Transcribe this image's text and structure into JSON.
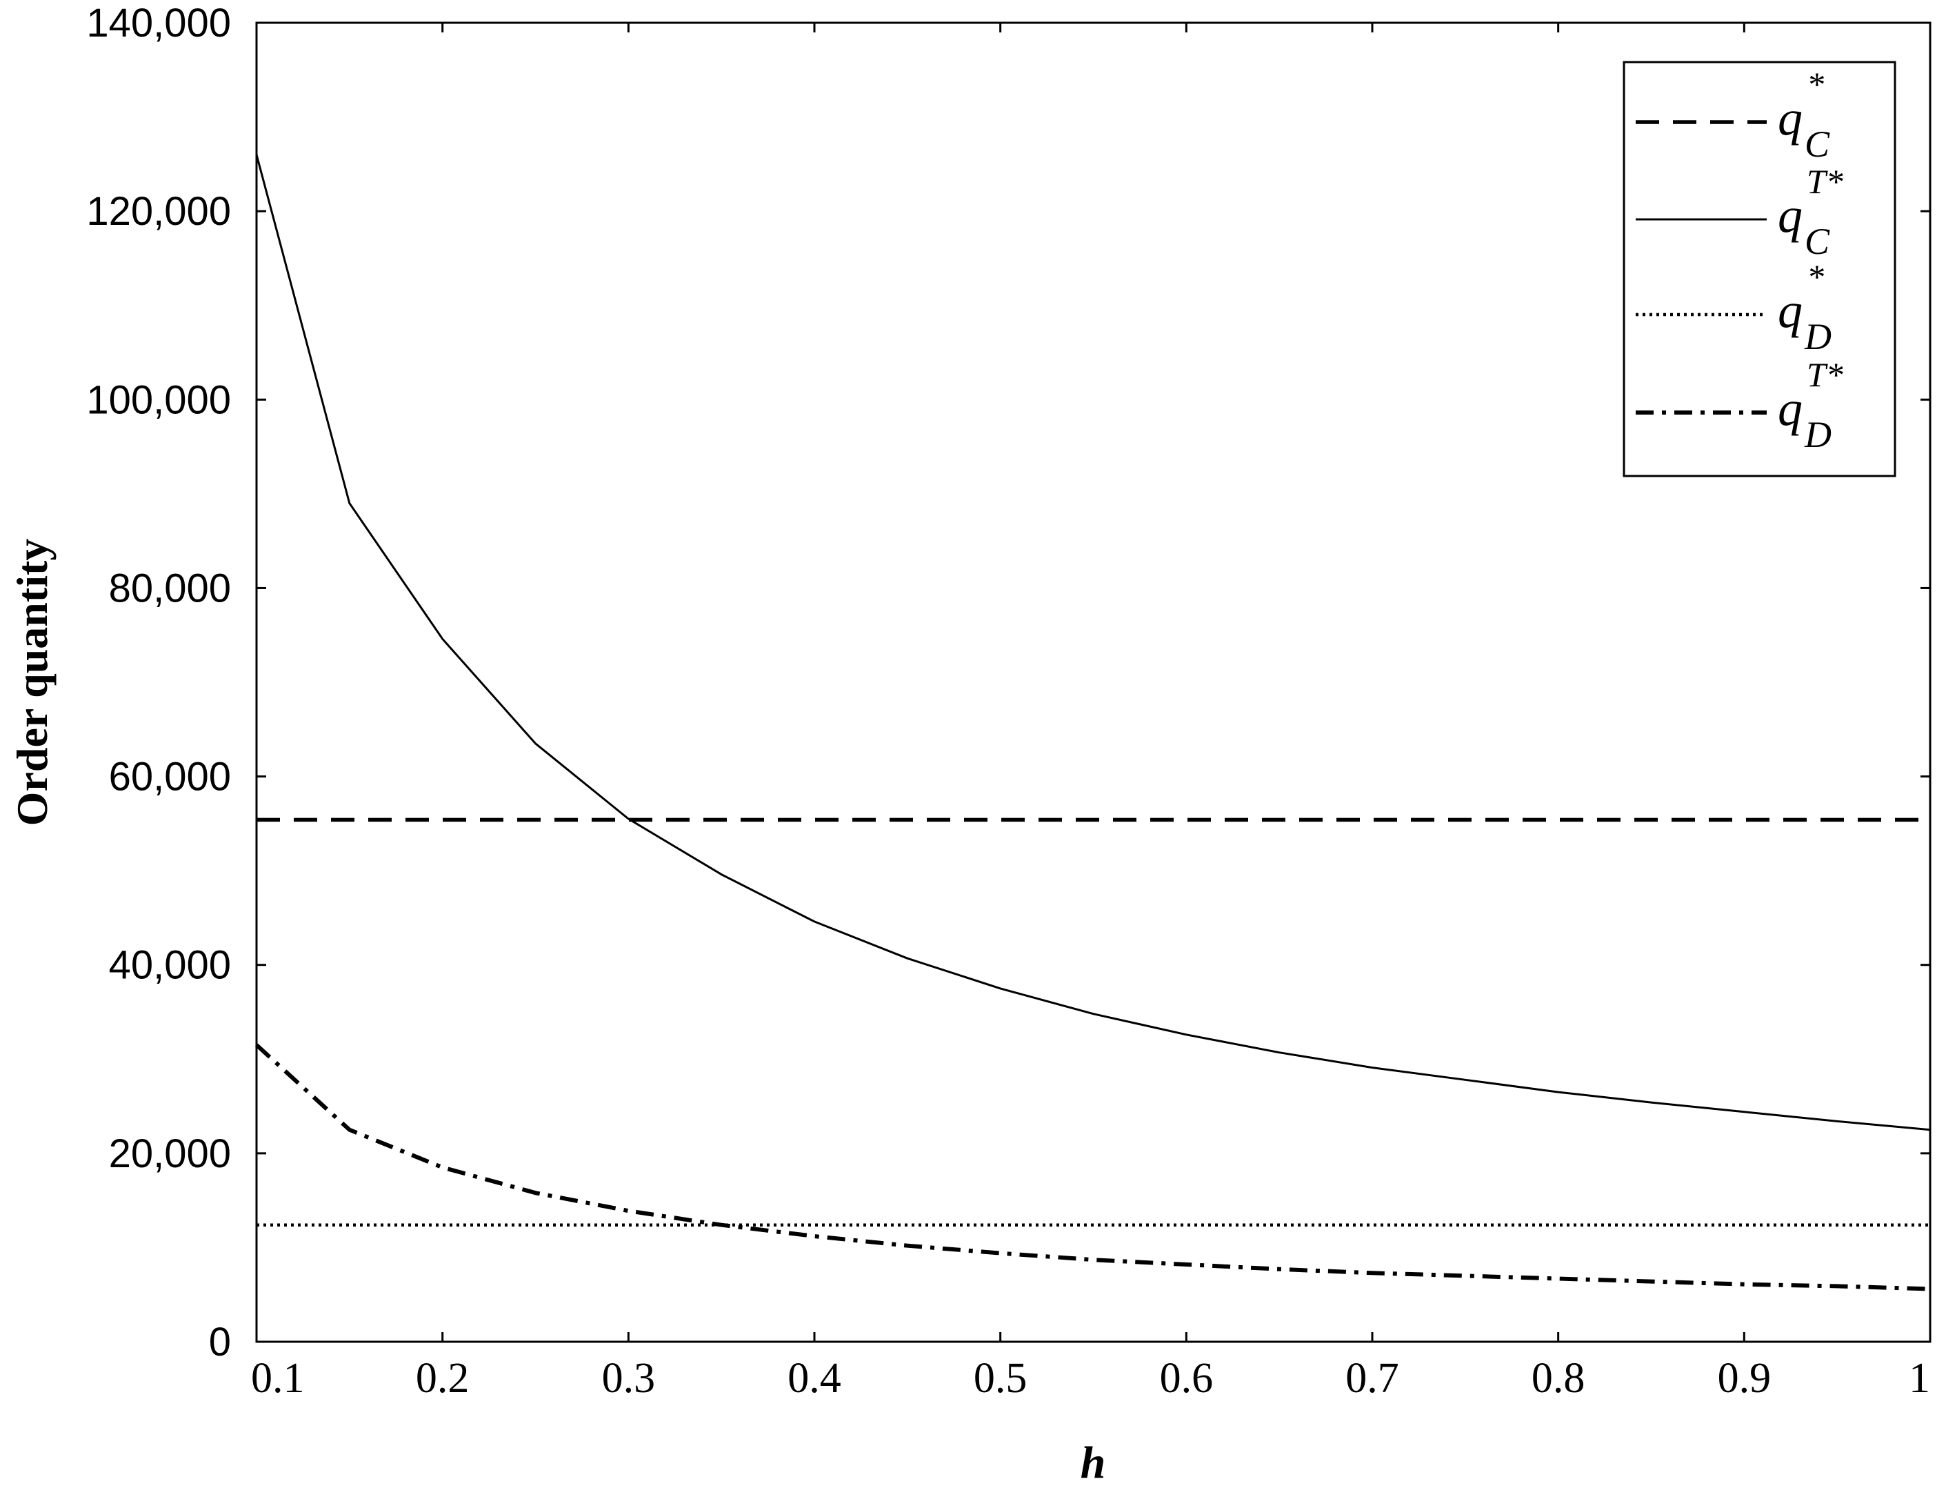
{
  "chart_data": {
    "type": "line",
    "xlabel": "h",
    "ylabel": "Order quantity",
    "xlim": [
      0.1,
      1
    ],
    "ylim": [
      0,
      140000
    ],
    "x_ticks": [
      "0.1",
      "0.2",
      "0.3",
      "0.4",
      "0.5",
      "0.6",
      "0.7",
      "0.8",
      "0.9",
      "1"
    ],
    "y_ticks": [
      "0",
      "20,000",
      "40,000",
      "60,000",
      "80,000",
      "100,000",
      "120,000",
      "140,000"
    ],
    "grid": false,
    "legend_position": "top-right",
    "x": [
      0.1,
      0.15,
      0.2,
      0.25,
      0.3,
      0.35,
      0.4,
      0.45,
      0.5,
      0.55,
      0.6,
      0.65,
      0.7,
      0.75,
      0.8,
      0.85,
      0.9,
      0.95,
      1.0
    ],
    "series": [
      {
        "name": "q_C^*",
        "legend_main": "q",
        "legend_sub": "C",
        "legend_sup": "*",
        "style": "dashed",
        "values": [
          55400,
          55400,
          55400,
          55400,
          55400,
          55400,
          55400,
          55400,
          55400,
          55400,
          55400,
          55400,
          55400,
          55400,
          55400,
          55400,
          55400,
          55400,
          55400
        ]
      },
      {
        "name": "q_C^{T*}",
        "legend_main": "q",
        "legend_sub": "C",
        "legend_sup": "T*",
        "style": "solid",
        "values": [
          126000,
          89000,
          74600,
          63500,
          55500,
          49600,
          44600,
          40700,
          37500,
          34800,
          32600,
          30700,
          29100,
          27800,
          26500,
          25400,
          24400,
          23400,
          22500
        ]
      },
      {
        "name": "q_D^*",
        "legend_main": "q",
        "legend_sub": "D",
        "legend_sup": "*",
        "style": "dotted",
        "values": [
          12400,
          12400,
          12400,
          12400,
          12400,
          12400,
          12400,
          12400,
          12400,
          12400,
          12400,
          12400,
          12400,
          12400,
          12400,
          12400,
          12400,
          12400,
          12400
        ]
      },
      {
        "name": "q_D^{T*}",
        "legend_main": "q",
        "legend_sub": "D",
        "legend_sup": "T*",
        "style": "dashdot",
        "values": [
          31500,
          22500,
          18500,
          15800,
          13900,
          12400,
          11200,
          10200,
          9400,
          8700,
          8200,
          7700,
          7300,
          7000,
          6700,
          6400,
          6100,
          5900,
          5600
        ]
      }
    ]
  }
}
